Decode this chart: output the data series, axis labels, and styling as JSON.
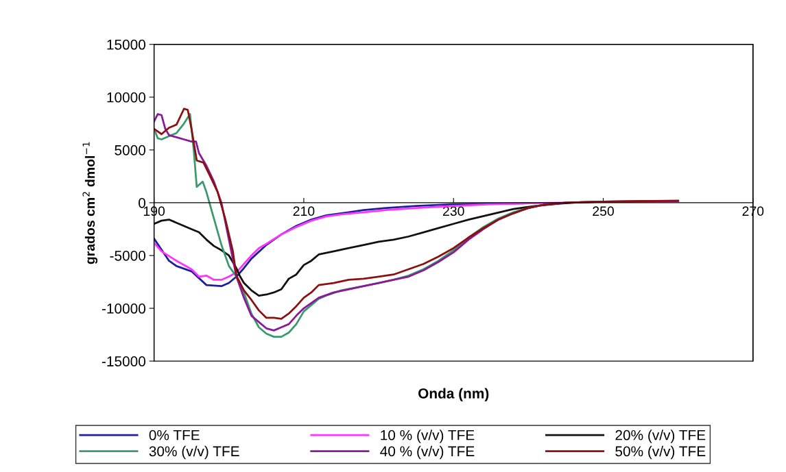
{
  "chart_data": {
    "type": "line",
    "xlabel": "Onda (nm)",
    "ylabel": "grados cm$^{2}$ dmol$^{−1}$",
    "xlim": [
      190,
      270
    ],
    "xticks": [
      190,
      210,
      230,
      250,
      270
    ],
    "ylim": [
      -15000,
      15000
    ],
    "yticks": [
      -15000,
      -10000,
      -5000,
      0,
      5000,
      10000,
      15000
    ],
    "grid": false,
    "legend": "bottom",
    "marker": "none",
    "line_style": "solid",
    "series": [
      {
        "name": "0% TFE",
        "color": "#1f1f9a",
        "x": [
          190,
          192,
          193,
          195,
          197,
          199,
          200,
          201,
          202,
          203,
          205,
          207,
          209,
          211,
          213,
          215,
          218,
          221,
          225,
          230,
          240
        ],
        "values": [
          -3400,
          -5500,
          -6000,
          -6500,
          -7800,
          -7900,
          -7600,
          -7000,
          -6200,
          -5300,
          -4000,
          -3000,
          -2200,
          -1600,
          -1200,
          -1000,
          -700,
          -500,
          -300,
          -150,
          -50
        ]
      },
      {
        "name": "10 % (v/v) TFE",
        "color": "#ff33ff",
        "x": [
          190,
          191,
          193,
          195,
          196,
          197,
          198,
          199,
          200,
          201,
          202,
          203,
          204,
          205,
          207,
          209,
          211,
          213,
          215,
          218,
          221,
          225,
          230,
          235,
          240,
          245
        ],
        "values": [
          -3800,
          -4600,
          -5500,
          -6300,
          -7000,
          -6900,
          -7300,
          -7300,
          -7000,
          -6600,
          -5800,
          -5000,
          -4300,
          -3900,
          -3000,
          -2300,
          -1700,
          -1300,
          -1100,
          -900,
          -700,
          -500,
          -300,
          -150,
          -50,
          0
        ]
      },
      {
        "name": "20% (v/v) TFE",
        "color": "#111111",
        "x": [
          190,
          191,
          192,
          193,
          195,
          196,
          197,
          198,
          199,
          200,
          201,
          201.5,
          202,
          203,
          204,
          205,
          206,
          207,
          208,
          209,
          210,
          211,
          212,
          214,
          216,
          218,
          220,
          222,
          224,
          226,
          228,
          230,
          232,
          235,
          238,
          241,
          244,
          247,
          250,
          255,
          260
        ],
        "values": [
          -2000,
          -1700,
          -1600,
          -1900,
          -2500,
          -2800,
          -3500,
          -4100,
          -4500,
          -5000,
          -6200,
          -7000,
          -7600,
          -8300,
          -8800,
          -8700,
          -8500,
          -8200,
          -7200,
          -6800,
          -5900,
          -5500,
          -4900,
          -4600,
          -4300,
          -4000,
          -3700,
          -3500,
          -3200,
          -2800,
          -2400,
          -2000,
          -1600,
          -1100,
          -600,
          -300,
          -100,
          50,
          100,
          150,
          150
        ]
      },
      {
        "name": "30% (v/v) TFE",
        "color": "#3a9a6e",
        "x": [
          190,
          190.5,
          191,
          192,
          193,
          194,
          194.8,
          195.3,
          195.7,
          196.5,
          197,
          198,
          199,
          200,
          201,
          202,
          203,
          204,
          205,
          206,
          207,
          208,
          209,
          210,
          211,
          212,
          213,
          215,
          218,
          220,
          222,
          224,
          226,
          228,
          230,
          232,
          234,
          236,
          238,
          240,
          242
        ],
        "values": [
          7000,
          6100,
          6000,
          6300,
          6600,
          7500,
          8400,
          5000,
          1500,
          2000,
          1000,
          -1500,
          -4000,
          -6000,
          -7000,
          -8500,
          -10500,
          -11800,
          -12400,
          -12700,
          -12700,
          -12300,
          -11500,
          -10300,
          -9700,
          -9100,
          -8800,
          -8300,
          -7900,
          -7600,
          -7300,
          -6900,
          -6300,
          -5500,
          -4500,
          -3300,
          -2300,
          -1500,
          -900,
          -500,
          -200
        ]
      },
      {
        "name": "40 % (v/v) TFE",
        "color": "#8a1a9a",
        "x": [
          190,
          190.5,
          191,
          191.5,
          192,
          193,
          194,
          195,
          195.6,
          196,
          197,
          198,
          199,
          200,
          201,
          202,
          203,
          204,
          205,
          206,
          207,
          208,
          209,
          210,
          212,
          214,
          216,
          218,
          220,
          222,
          224,
          226,
          228,
          230,
          232,
          234,
          236,
          238,
          240,
          242,
          245,
          250,
          260
        ],
        "values": [
          7700,
          8400,
          8300,
          7000,
          6400,
          6200,
          6000,
          5800,
          5800,
          4700,
          3500,
          2000,
          0,
          -3500,
          -7000,
          -9000,
          -10700,
          -11300,
          -11900,
          -12100,
          -11800,
          -11500,
          -10700,
          -10000,
          -9000,
          -8500,
          -8200,
          -7900,
          -7600,
          -7300,
          -7000,
          -6400,
          -5600,
          -4700,
          -3500,
          -2500,
          -1600,
          -1000,
          -500,
          -200,
          0,
          100,
          150
        ]
      },
      {
        "name": "50% (v/v) TFE",
        "color": "#8b1010",
        "x": [
          190,
          191,
          192,
          193,
          194,
          194.5,
          195,
          195.7,
          196.6,
          197.5,
          198.5,
          199.5,
          200.5,
          201,
          202,
          203,
          204,
          205,
          206,
          207,
          208,
          209,
          210,
          211,
          212,
          214,
          216,
          218,
          220,
          222,
          224,
          226,
          228,
          230,
          232,
          234,
          236,
          238,
          240,
          242,
          245,
          250,
          260
        ],
        "values": [
          7000,
          6500,
          7100,
          7400,
          8900,
          8800,
          7000,
          4000,
          3800,
          2500,
          1000,
          -1500,
          -4500,
          -6900,
          -8300,
          -9200,
          -10200,
          -10900,
          -10900,
          -11000,
          -10500,
          -9800,
          -9000,
          -8500,
          -7800,
          -7600,
          -7300,
          -7200,
          -7000,
          -6800,
          -6300,
          -5800,
          -5100,
          -4300,
          -3300,
          -2400,
          -1600,
          -1000,
          -500,
          -200,
          0,
          100,
          200
        ]
      }
    ]
  }
}
